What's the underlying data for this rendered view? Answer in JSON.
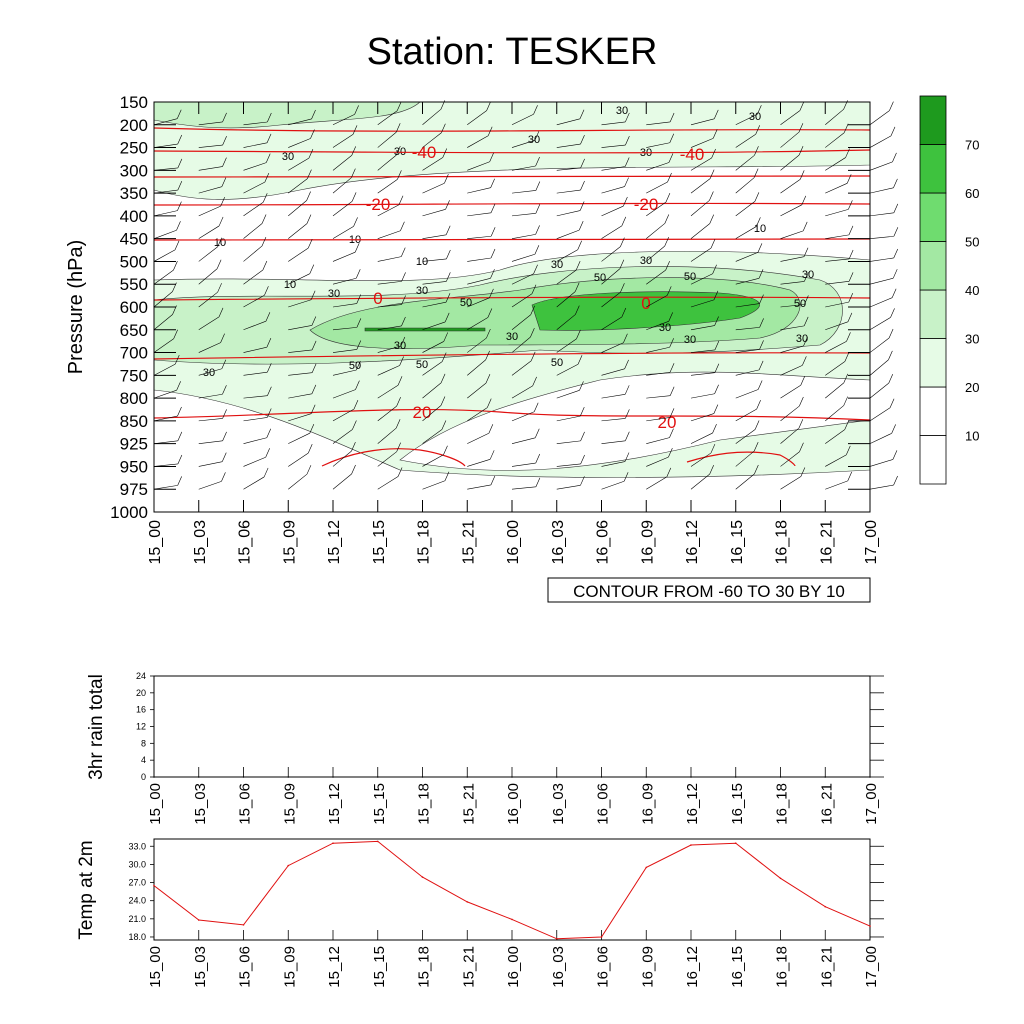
{
  "title": "Station: TESKER",
  "chart_data": [
    {
      "type": "heatmap",
      "ylabel": "Pressure (hPa)",
      "y_levels": [
        "150",
        "200",
        "250",
        "300",
        "350",
        "400",
        "450",
        "500",
        "550",
        "600",
        "650",
        "700",
        "750",
        "800",
        "850",
        "925",
        "950",
        "975",
        "1000"
      ],
      "x_labels": [
        "15_00",
        "15_03",
        "15_06",
        "15_09",
        "15_12",
        "15_15",
        "15_18",
        "15_21",
        "16_00",
        "16_03",
        "16_06",
        "16_09",
        "16_12",
        "16_15",
        "16_18",
        "16_21",
        "17_00"
      ],
      "contour_info": "CONTOUR FROM -60 TO 30 BY 10",
      "colorbar_labels": [
        "10",
        "20",
        "30",
        "40",
        "50",
        "60",
        "70"
      ],
      "colorbar_colors": [
        "#ffffff",
        "#ffffff",
        "#e6fbe6",
        "#c8f2c8",
        "#a3e8a3",
        "#6fdc6f",
        "#3ec23e",
        "#1e9a1e"
      ],
      "temperature_contour_labels": [
        "-40",
        "-40",
        "-20",
        "-20",
        "0",
        "0",
        "20",
        "20"
      ],
      "humidity_contour_labels": [
        "30",
        "30",
        "30",
        "30",
        "30",
        "30",
        "30",
        "10",
        "10",
        "10",
        "10",
        "10",
        "30",
        "30",
        "30",
        "30",
        "30",
        "50",
        "50",
        "50",
        "50",
        "50",
        "50",
        "50",
        "30",
        "30",
        "30",
        "30",
        "30"
      ],
      "isotherm_color": "#e01010",
      "fill_color_main": "#2bb52b"
    },
    {
      "type": "line",
      "ylabel": "3hr rain total",
      "yticks": [
        "0",
        "4",
        "8",
        "12",
        "16",
        "20",
        "24"
      ],
      "ylim": [
        0,
        24
      ],
      "x_labels": [
        "15_00",
        "15_03",
        "15_06",
        "15_09",
        "15_12",
        "15_15",
        "15_18",
        "15_21",
        "16_00",
        "16_03",
        "16_06",
        "16_09",
        "16_12",
        "16_15",
        "16_18",
        "16_21",
        "17_00"
      ],
      "values": [
        0,
        0,
        0,
        0,
        0,
        0,
        0,
        0,
        0,
        0,
        0,
        0,
        0,
        0,
        0,
        0,
        0
      ]
    },
    {
      "type": "line",
      "ylabel": "Temp at 2m",
      "yticks": [
        "18.0",
        "21.0",
        "24.0",
        "27.0",
        "30.0",
        "33.0"
      ],
      "ylim": [
        17.5,
        34.2
      ],
      "x_labels": [
        "15_00",
        "15_03",
        "15_06",
        "15_09",
        "15_12",
        "15_15",
        "15_18",
        "15_21",
        "16_00",
        "16_03",
        "16_06",
        "16_09",
        "16_12",
        "16_15",
        "16_18",
        "16_21",
        "17_00"
      ],
      "values": [
        26.5,
        20.8,
        20.0,
        29.8,
        33.5,
        33.8,
        27.9,
        23.8,
        20.9,
        17.7,
        18.0,
        29.5,
        33.2,
        33.5,
        27.7,
        23.0,
        19.8
      ],
      "color": "#e01010"
    }
  ]
}
